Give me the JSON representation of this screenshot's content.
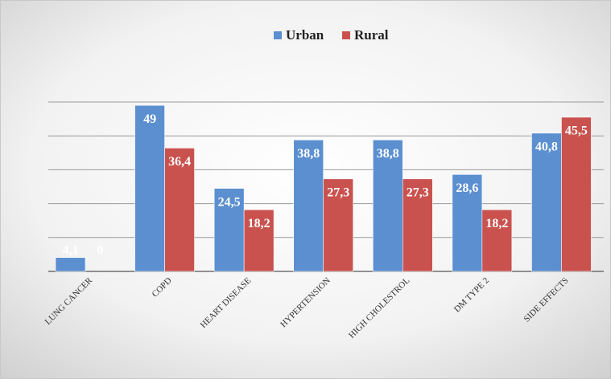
{
  "chart_data": {
    "type": "bar",
    "categories": [
      "LUNG CANCER",
      "COPD",
      "HEART DISEASE",
      "HYPERTENSION",
      "HIGH CHOLESTROL",
      "DM TYPE 2",
      "SIDE EFFECTS"
    ],
    "series": [
      {
        "name": "Urban",
        "color": "#5b8fd0",
        "values": [
          4.1,
          49,
          24.5,
          38.8,
          38.8,
          28.6,
          40.8
        ],
        "value_labels": [
          "4,1",
          "49",
          "24,5",
          "38,8",
          "38,8",
          "28,6",
          "40,8"
        ]
      },
      {
        "name": "Rural",
        "color": "#c9524f",
        "values": [
          0,
          36.4,
          18.2,
          27.3,
          27.3,
          18.2,
          45.5
        ],
        "value_labels": [
          "0",
          "36,4",
          "18,2",
          "27,3",
          "27,3",
          "18,2",
          "45,5"
        ]
      }
    ],
    "ylim": [
      0,
      50
    ],
    "yticks": [
      0,
      10,
      20,
      30,
      40,
      50
    ],
    "grid": true,
    "legend": "top"
  }
}
